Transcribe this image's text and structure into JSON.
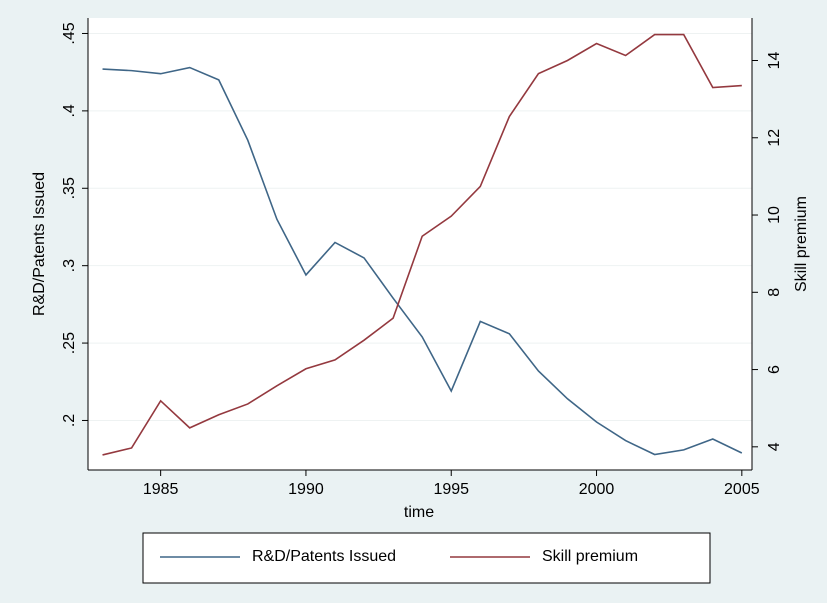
{
  "chart_data": {
    "type": "line",
    "xlabel": "time",
    "ylabel": "R&D/Patents Issued",
    "y2label": "Skill premium",
    "x": [
      1983,
      1984,
      1985,
      1986,
      1987,
      1988,
      1989,
      1990,
      1991,
      1992,
      1993,
      1994,
      1995,
      1996,
      1997,
      1998,
      1999,
      2000,
      2001,
      2002,
      2003,
      2004,
      2005
    ],
    "series": [
      {
        "name": "R&D/Patents Issued",
        "color": "#3f6687",
        "axis": "y",
        "values": [
          0.427,
          0.426,
          0.424,
          0.428,
          0.42,
          0.381,
          0.33,
          0.294,
          0.315,
          0.305,
          0.279,
          0.254,
          0.219,
          0.264,
          0.256,
          0.232,
          0.214,
          0.199,
          0.187,
          0.178,
          0.181,
          0.188,
          0.179
        ]
      },
      {
        "name": "Skill premium",
        "color": "#94393f",
        "axis": "y2",
        "values": [
          3.79,
          3.97,
          5.19,
          4.49,
          4.83,
          5.11,
          5.58,
          6.02,
          6.25,
          6.76,
          7.33,
          9.45,
          9.97,
          10.74,
          12.55,
          13.66,
          14.0,
          14.44,
          14.13,
          14.67,
          14.67,
          13.3,
          13.35
        ]
      }
    ],
    "xlim": [
      1982.5,
      2005.35
    ],
    "xticks": [
      1985,
      1990,
      1995,
      2000,
      2005
    ],
    "ylim": [
      0.168,
      0.46
    ],
    "yticks": [
      {
        "value": 0.2,
        "label": ".2"
      },
      {
        "value": 0.25,
        "label": ".25"
      },
      {
        "value": 0.3,
        "label": ".3"
      },
      {
        "value": 0.35,
        "label": ".35"
      },
      {
        "value": 0.4,
        "label": ".4"
      },
      {
        "value": 0.45,
        "label": ".45"
      }
    ],
    "y2lim": [
      3.4,
      15.1
    ],
    "y2ticks": [
      4,
      6,
      8,
      10,
      12,
      14
    ],
    "grid": true,
    "legend": "bottom"
  }
}
